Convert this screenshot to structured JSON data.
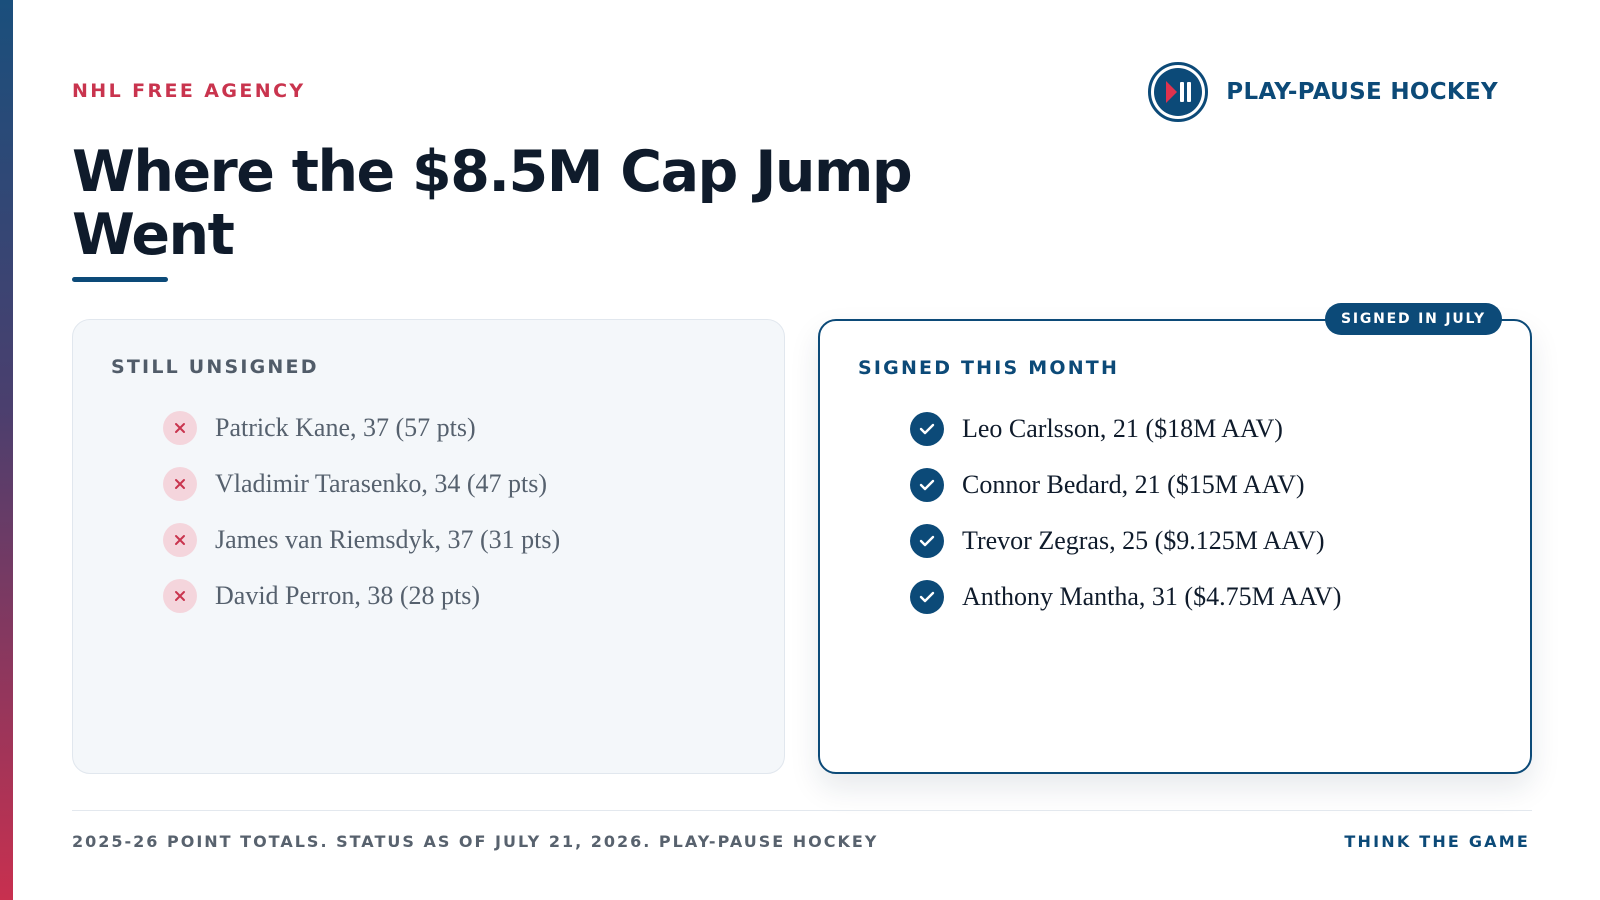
{
  "colors": {
    "navy": "#0c4a78",
    "red": "#c9344e",
    "ink": "#0f1b2b",
    "muted": "#56616e"
  },
  "header": {
    "eyebrow": "NHL FREE AGENCY",
    "brand": {
      "name": "PLAY-PAUSE HOCKEY",
      "logo_icon": "play-pause-icon"
    },
    "title": "Where the $8.5M Cap Jump Went"
  },
  "unsigned": {
    "heading": "STILL UNSIGNED",
    "marker_icon": "x-icon",
    "items": [
      {
        "text": "Patrick Kane, 37 (57 pts)"
      },
      {
        "text": "Vladimir Tarasenko, 34 (47 pts)"
      },
      {
        "text": "James van Riemsdyk, 37 (31 pts)"
      },
      {
        "text": "David Perron, 38 (28 pts)"
      }
    ]
  },
  "signed": {
    "badge": "SIGNED IN JULY",
    "heading": "SIGNED THIS MONTH",
    "marker_icon": "check-icon",
    "items": [
      {
        "text": "Leo Carlsson, 21 ($18M AAV)"
      },
      {
        "text": "Connor Bedard, 21 ($15M AAV)"
      },
      {
        "text": "Trevor Zegras, 25 ($9.125M AAV)"
      },
      {
        "text": "Anthony Mantha, 31 ($4.75M AAV)"
      }
    ]
  },
  "footer": {
    "source": "2025-26 POINT TOTALS. STATUS AS OF JULY 21, 2026. PLAY-PAUSE HOCKEY",
    "tagline": "THINK THE GAME"
  }
}
